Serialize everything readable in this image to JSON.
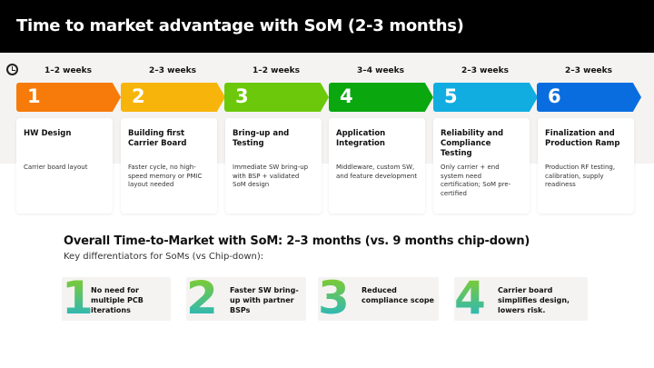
{
  "title": "Time to market advantage with SoM (2-3 months)",
  "steps": [
    {
      "num": "1",
      "weeks": "1–2 weeks",
      "title": "HW Design",
      "desc": "Carrier board layout",
      "color": "#f77b0a"
    },
    {
      "num": "2",
      "weeks": "2–3 weeks",
      "title": "Building first Carrier Board",
      "desc": "Faster cycle, no high-speed memory or PMIC layout needed",
      "color": "#f7b40a"
    },
    {
      "num": "3",
      "weeks": "1–2 weeks",
      "title": "Bring-up and Testing",
      "desc": "Immediate SW bring-up with BSP + validated SoM design",
      "color": "#6cc80a"
    },
    {
      "num": "4",
      "weeks": "3–4 weeks",
      "title": "Application Integration",
      "desc": "Middleware, custom SW, and feature development",
      "color": "#0aa70f"
    },
    {
      "num": "5",
      "weeks": "2–3 weeks",
      "title": "Reliability and Compliance Testing",
      "desc": "Only carrier + end system need certification; SoM pre-certified",
      "color": "#12ade0"
    },
    {
      "num": "6",
      "weeks": "2–3 weeks",
      "title": "Finalization and Production Ramp",
      "desc": "Production RF testing, calibration, supply readiness",
      "color": "#0a6ddf"
    }
  ],
  "overall": "Overall Time-to-Market with SoM: 2–3 months (vs. 9 months chip-down)",
  "subtitle": "Key differentiators for SoMs (vs Chip-down):",
  "differentiators": [
    {
      "num": "1",
      "text": "No need for multiple PCB iterations"
    },
    {
      "num": "2",
      "text": "Faster SW bring-up with partner BSPs"
    },
    {
      "num": "3",
      "text": "Reduced compliance scope"
    },
    {
      "num": "4",
      "text": "Carrier board simplifies design, lowers risk."
    }
  ]
}
